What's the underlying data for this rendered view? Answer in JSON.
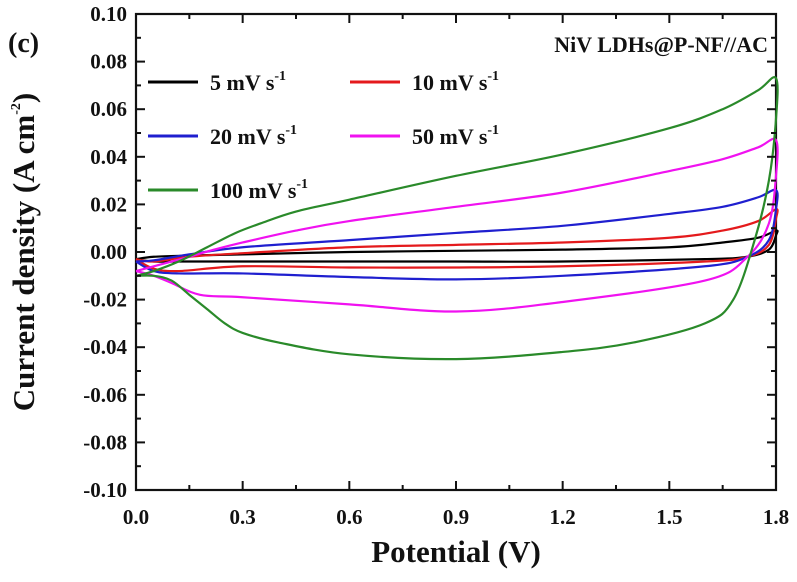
{
  "chart_data": {
    "type": "line",
    "panel_label": "(c)",
    "annotation": "NiV LDHs@P-NF//AC",
    "xlabel": "Potential (V)",
    "ylabel_main": "Current density (A cm",
    "ylabel_sup": "-2",
    "ylabel_close": ")",
    "xlim": [
      0.0,
      1.8
    ],
    "ylim": [
      -0.1,
      0.1
    ],
    "x_ticks": [
      0.0,
      0.3,
      0.6,
      0.9,
      1.2,
      1.5,
      1.8
    ],
    "x_tick_labels": [
      "0.0",
      "0.3",
      "0.6",
      "0.9",
      "1.2",
      "1.5",
      "1.8"
    ],
    "y_ticks": [
      -0.1,
      -0.08,
      -0.06,
      -0.04,
      -0.02,
      0.0,
      0.02,
      0.04,
      0.06,
      0.08,
      0.1
    ],
    "y_tick_labels": [
      "-0.10",
      "-0.08",
      "-0.06",
      "-0.04",
      "-0.02",
      "0.00",
      "0.02",
      "0.04",
      "0.06",
      "0.08",
      "0.10"
    ],
    "grid": false,
    "legend_position": "top-left",
    "series": [
      {
        "name": "5 mV s",
        "name_sup": "-1",
        "color": "#000000",
        "x": [
          0.0,
          0.05,
          0.15,
          0.3,
          0.6,
          0.9,
          1.2,
          1.5,
          1.65,
          1.75,
          1.8,
          1.8,
          1.78,
          1.72,
          1.6,
          1.2,
          0.9,
          0.6,
          0.3,
          0.12,
          0.05,
          0.0
        ],
        "y": [
          -0.003,
          -0.002,
          -0.0015,
          -0.001,
          0.0,
          0.0005,
          0.001,
          0.002,
          0.004,
          0.006,
          0.009,
          0.007,
          0.001,
          -0.002,
          -0.003,
          -0.004,
          -0.004,
          -0.004,
          -0.004,
          -0.004,
          -0.004,
          -0.003
        ]
      },
      {
        "name": "10 mV s",
        "name_sup": "-1",
        "color": "#e41a1c",
        "x": [
          0.0,
          0.05,
          0.15,
          0.3,
          0.6,
          0.9,
          1.2,
          1.5,
          1.65,
          1.75,
          1.8,
          1.8,
          1.78,
          1.72,
          1.6,
          1.2,
          0.9,
          0.6,
          0.3,
          0.12,
          0.05,
          0.0
        ],
        "y": [
          -0.003,
          -0.004,
          -0.002,
          -0.0005,
          0.002,
          0.003,
          0.004,
          0.006,
          0.009,
          0.013,
          0.018,
          0.014,
          0.003,
          -0.002,
          -0.004,
          -0.006,
          -0.0065,
          -0.0065,
          -0.006,
          -0.008,
          -0.007,
          -0.003
        ]
      },
      {
        "name": "20 mV s",
        "name_sup": "-1",
        "color": "#1f1fcf",
        "x": [
          0.0,
          0.05,
          0.15,
          0.3,
          0.6,
          0.9,
          1.2,
          1.5,
          1.65,
          1.75,
          1.8,
          1.8,
          1.78,
          1.72,
          1.6,
          1.2,
          0.9,
          0.6,
          0.3,
          0.12,
          0.05,
          0.0
        ],
        "y": [
          -0.004,
          -0.0035,
          -0.001,
          0.002,
          0.005,
          0.008,
          0.011,
          0.016,
          0.019,
          0.023,
          0.026,
          0.018,
          0.005,
          -0.002,
          -0.006,
          -0.01,
          -0.0115,
          -0.0105,
          -0.009,
          -0.009,
          -0.008,
          -0.004
        ]
      },
      {
        "name": "50 mV s",
        "name_sup": "-1",
        "color": "#f012f0",
        "x": [
          0.0,
          0.05,
          0.15,
          0.22,
          0.3,
          0.45,
          0.6,
          0.9,
          1.2,
          1.5,
          1.65,
          1.75,
          1.8,
          1.8,
          1.78,
          1.72,
          1.6,
          1.2,
          0.9,
          0.6,
          0.3,
          0.18,
          0.1,
          0.05,
          0.0
        ],
        "y": [
          -0.008,
          -0.006,
          -0.002,
          0.001,
          0.004,
          0.009,
          0.013,
          0.019,
          0.025,
          0.034,
          0.039,
          0.044,
          0.047,
          0.032,
          0.012,
          -0.002,
          -0.012,
          -0.021,
          -0.025,
          -0.022,
          -0.019,
          -0.018,
          -0.013,
          -0.01,
          -0.008
        ]
      },
      {
        "name": "100 mV s",
        "name_sup": "-1",
        "color": "#2a8a2a",
        "x": [
          0.0,
          0.05,
          0.12,
          0.2,
          0.28,
          0.35,
          0.45,
          0.6,
          0.9,
          1.2,
          1.5,
          1.65,
          1.75,
          1.8,
          1.8,
          1.78,
          1.74,
          1.68,
          1.6,
          1.4,
          1.2,
          0.9,
          0.6,
          0.4,
          0.3,
          0.25,
          0.2,
          0.15,
          0.1,
          0.05,
          0.0
        ],
        "y": [
          -0.01,
          -0.008,
          -0.004,
          0.002,
          0.008,
          0.012,
          0.017,
          0.022,
          0.032,
          0.041,
          0.052,
          0.06,
          0.068,
          0.073,
          0.056,
          0.03,
          0.005,
          -0.02,
          -0.03,
          -0.038,
          -0.042,
          -0.045,
          -0.043,
          -0.038,
          -0.034,
          -0.03,
          -0.024,
          -0.018,
          -0.012,
          -0.01,
          -0.01
        ]
      }
    ]
  }
}
